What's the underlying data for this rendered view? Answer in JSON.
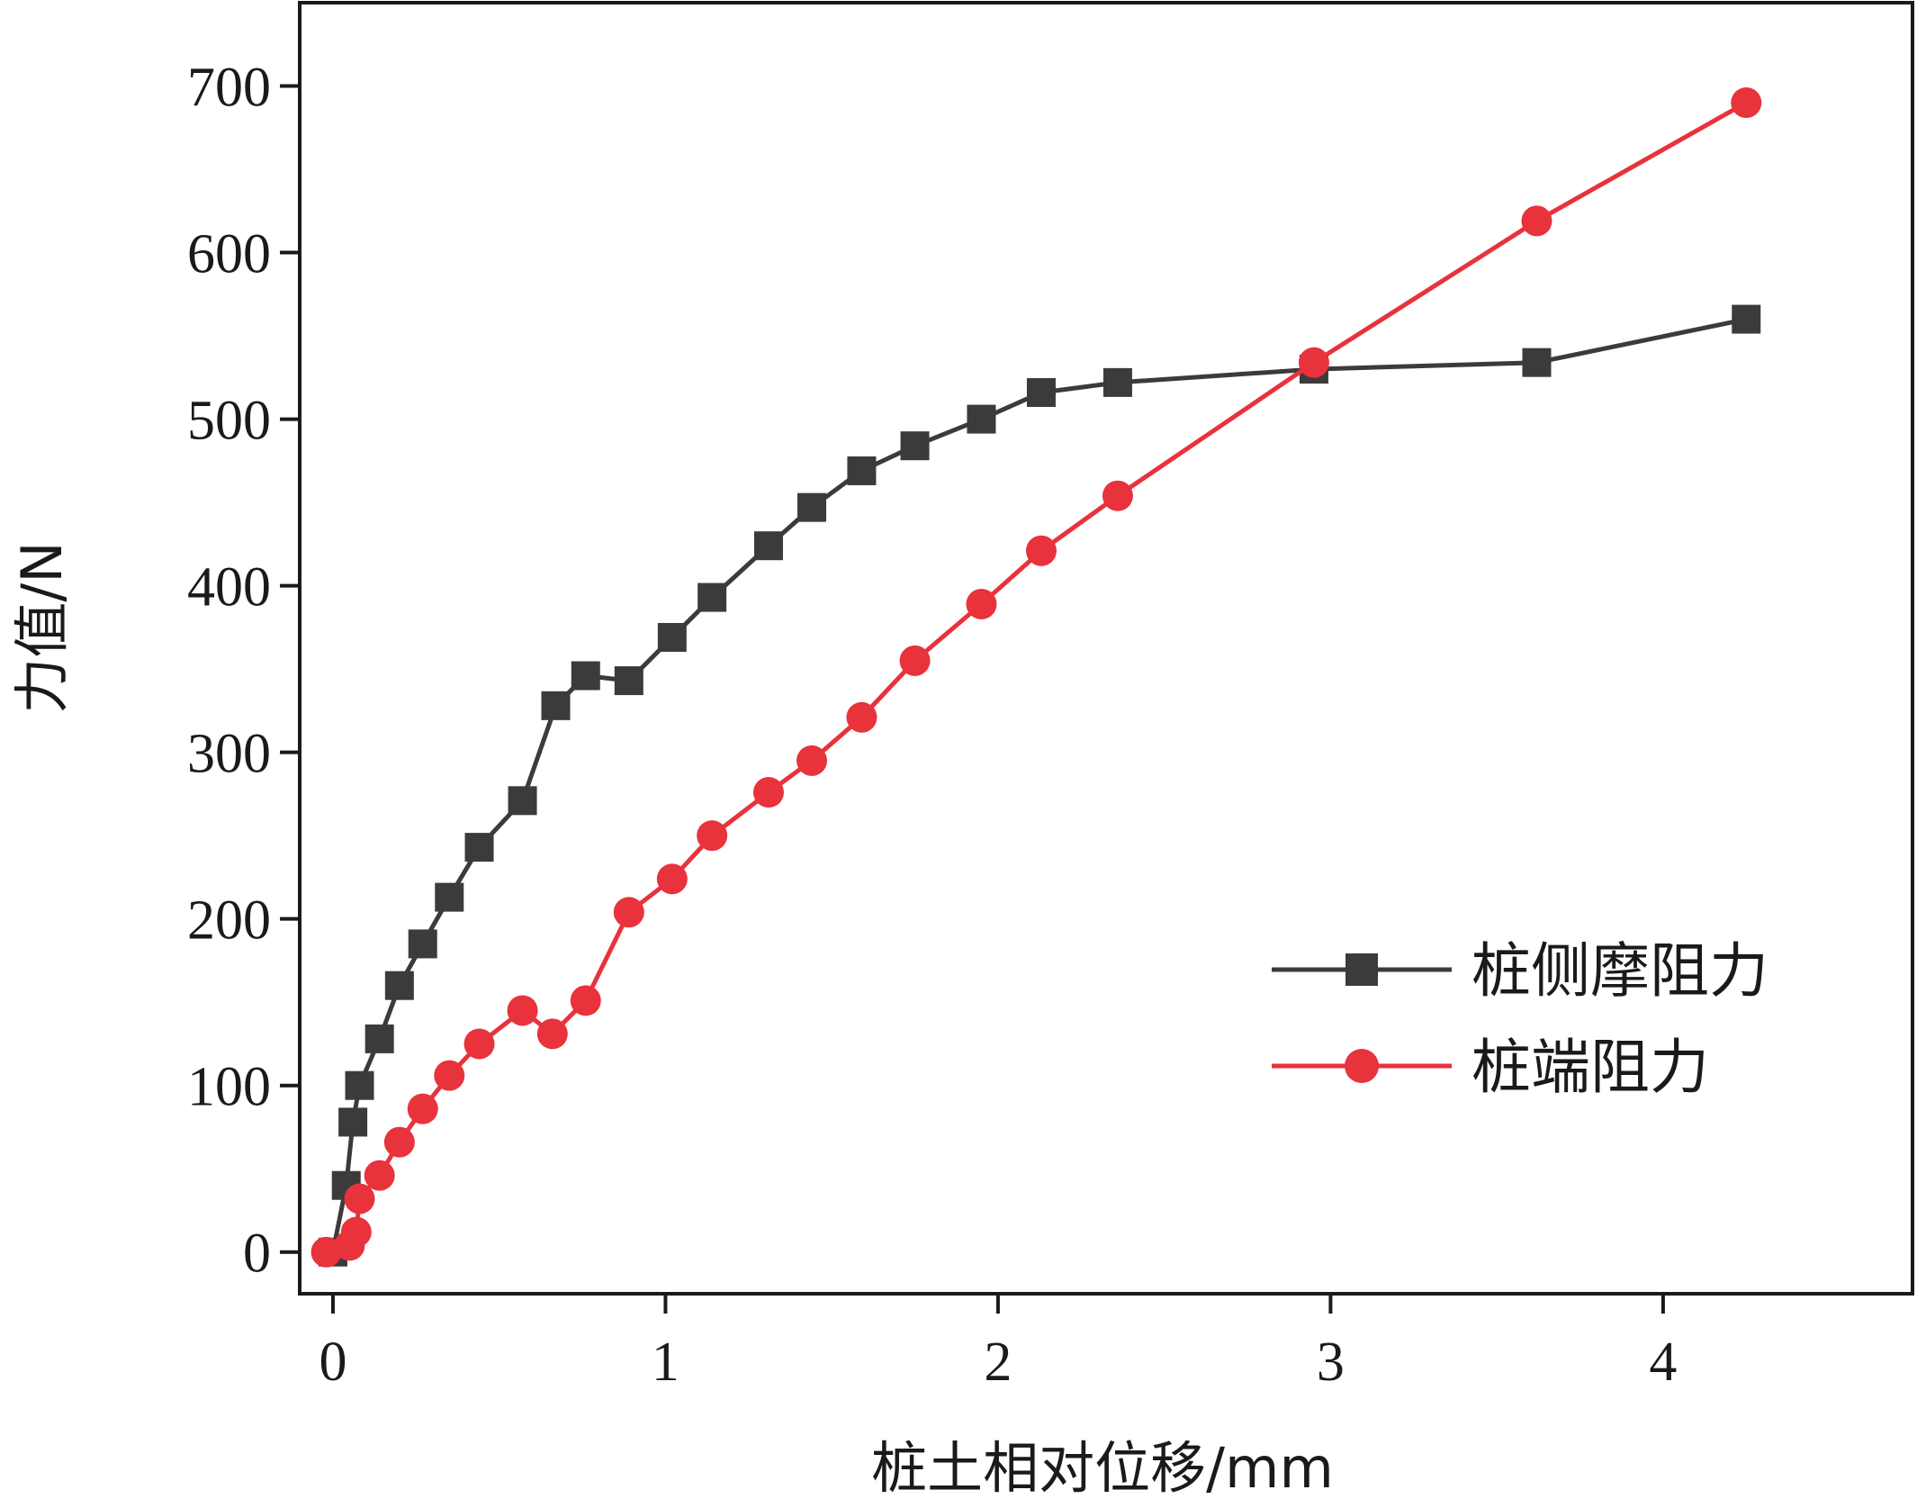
{
  "chart_data": {
    "type": "line",
    "xlabel": "桩土相对位移/mm",
    "ylabel": "力值/N",
    "xlim": [
      -0.1,
      4.75
    ],
    "ylim": [
      -25,
      750
    ],
    "xticks": [
      0,
      1,
      2,
      3,
      4
    ],
    "yticks": [
      0,
      100,
      200,
      300,
      400,
      500,
      600,
      700
    ],
    "grid": false,
    "legend_position": "lower-right",
    "series": [
      {
        "name": "桩侧摩阻力",
        "color": "#3d3a3a",
        "marker": "square",
        "points": [
          [
            0,
            0
          ],
          [
            0.04,
            40
          ],
          [
            0.06,
            78
          ],
          [
            0.08,
            100
          ],
          [
            0.14,
            128
          ],
          [
            0.2,
            160
          ],
          [
            0.27,
            185
          ],
          [
            0.35,
            213
          ],
          [
            0.44,
            243
          ],
          [
            0.57,
            271
          ],
          [
            0.67,
            328
          ],
          [
            0.76,
            346
          ],
          [
            0.89,
            343
          ],
          [
            1.02,
            369
          ],
          [
            1.14,
            393
          ],
          [
            1.31,
            424
          ],
          [
            1.44,
            447
          ],
          [
            1.59,
            469
          ],
          [
            1.75,
            484
          ],
          [
            1.95,
            500
          ],
          [
            2.13,
            516
          ],
          [
            2.36,
            522
          ],
          [
            2.95,
            530
          ],
          [
            3.62,
            534
          ],
          [
            4.25,
            560
          ]
        ]
      },
      {
        "name": "桩端阻力",
        "color": "#e8323c",
        "marker": "circle",
        "points": [
          [
            -0.02,
            0
          ],
          [
            0.05,
            4
          ],
          [
            0.07,
            12
          ],
          [
            0.08,
            32
          ],
          [
            0.14,
            46
          ],
          [
            0.2,
            66
          ],
          [
            0.27,
            86
          ],
          [
            0.35,
            106
          ],
          [
            0.44,
            125
          ],
          [
            0.57,
            145
          ],
          [
            0.66,
            131
          ],
          [
            0.76,
            151
          ],
          [
            0.89,
            204
          ],
          [
            1.02,
            224
          ],
          [
            1.14,
            250
          ],
          [
            1.31,
            276
          ],
          [
            1.44,
            295
          ],
          [
            1.59,
            321
          ],
          [
            1.75,
            355
          ],
          [
            1.95,
            389
          ],
          [
            2.13,
            421
          ],
          [
            2.36,
            454
          ],
          [
            2.95,
            534
          ],
          [
            3.62,
            619
          ],
          [
            4.25,
            690
          ]
        ]
      }
    ]
  }
}
